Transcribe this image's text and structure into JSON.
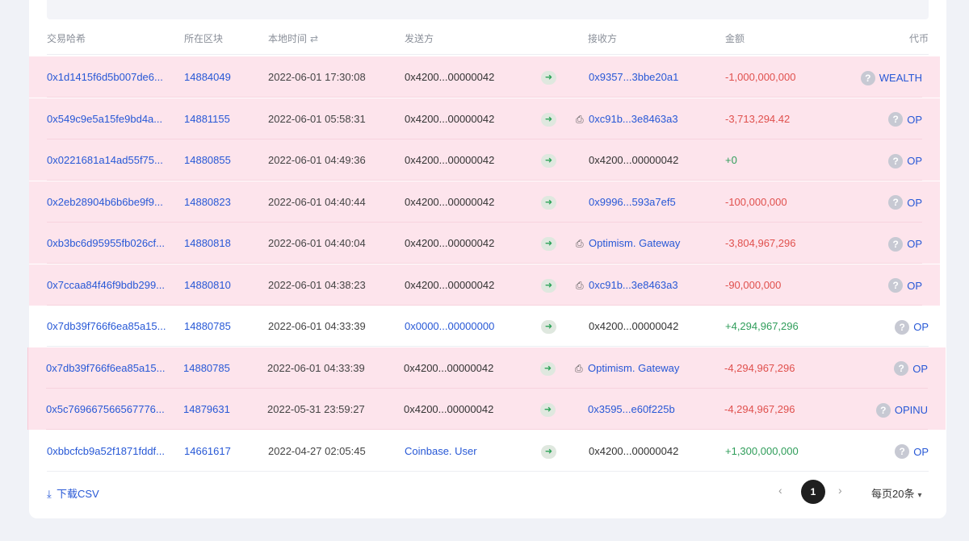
{
  "table": {
    "headers": {
      "hash": "交易哈希",
      "block": "所在区块",
      "time": "本地时间",
      "from": "发送方",
      "to": "接收方",
      "amount": "金额",
      "token": "代币"
    },
    "rows": [
      {
        "hash": "0x1d1415f6d5b007de6...",
        "block": "14884049",
        "time": "2022-06-01 17:30:08",
        "from": "0x4200...00000042",
        "from_link": false,
        "to": "0x9357...3bbe20a1",
        "to_link": true,
        "to_contract": false,
        "amount": "-1,000,000,000",
        "amount_sign": "neg",
        "token": "WEALTH",
        "highlight": true
      },
      {
        "hash": "0x549c9e5a15fe9bd4a...",
        "block": "14881155",
        "time": "2022-06-01 05:58:31",
        "from": "0x4200...00000042",
        "from_link": false,
        "to": "0xc91b...3e8463a3",
        "to_link": true,
        "to_contract": true,
        "amount": "-3,713,294.42",
        "amount_sign": "neg",
        "token": "OP",
        "highlight": true
      },
      {
        "hash": "0x0221681a14ad55f75...",
        "block": "14880855",
        "time": "2022-06-01 04:49:36",
        "from": "0x4200...00000042",
        "from_link": false,
        "to": "0x4200...00000042",
        "to_link": false,
        "to_contract": false,
        "amount": "+0",
        "amount_sign": "pos",
        "token": "OP",
        "highlight": true
      },
      {
        "hash": "0x2eb28904b6b6be9f9...",
        "block": "14880823",
        "time": "2022-06-01 04:40:44",
        "from": "0x4200...00000042",
        "from_link": false,
        "to": "0x9996...593a7ef5",
        "to_link": true,
        "to_contract": false,
        "amount": "-100,000,000",
        "amount_sign": "neg",
        "token": "OP",
        "highlight": true
      },
      {
        "hash": "0xb3bc6d95955fb026cf...",
        "block": "14880818",
        "time": "2022-06-01 04:40:04",
        "from": "0x4200...00000042",
        "from_link": false,
        "to": "Optimism. Gateway",
        "to_link": true,
        "to_contract": true,
        "amount": "-3,804,967,296",
        "amount_sign": "neg",
        "token": "OP",
        "highlight": true
      },
      {
        "hash": "0x7ccaa84f46f9bdb299...",
        "block": "14880810",
        "time": "2022-06-01 04:38:23",
        "from": "0x4200...00000042",
        "from_link": false,
        "to": "0xc91b...3e8463a3",
        "to_link": true,
        "to_contract": true,
        "amount": "-90,000,000",
        "amount_sign": "neg",
        "token": "OP",
        "highlight": true
      },
      {
        "hash": "0x7db39f766f6ea85a15...",
        "block": "14880785",
        "time": "2022-06-01 04:33:39",
        "from": "0x0000...00000000",
        "from_link": true,
        "to": "0x4200...00000042",
        "to_link": false,
        "to_contract": false,
        "amount": "+4,294,967,296",
        "amount_sign": "pos",
        "token": "OP",
        "highlight": false
      },
      {
        "hash": "0x7db39f766f6ea85a15...",
        "block": "14880785",
        "time": "2022-06-01 04:33:39",
        "from": "0x4200...00000042",
        "from_link": false,
        "to": "Optimism. Gateway",
        "to_link": true,
        "to_contract": true,
        "amount": "-4,294,967,296",
        "amount_sign": "neg",
        "token": "OP",
        "highlight": true
      },
      {
        "hash": "0x5c769667566567776...",
        "block": "14879631",
        "time": "2022-05-31 23:59:27",
        "from": "0x4200...00000042",
        "from_link": false,
        "to": "0x3595...e60f225b",
        "to_link": true,
        "to_contract": false,
        "amount": "-4,294,967,296",
        "amount_sign": "neg",
        "token": "OPINU",
        "highlight": true
      },
      {
        "hash": "0xbbcfcb9a52f1871fddf...",
        "block": "14661617",
        "time": "2022-04-27 02:05:45",
        "from": "Coinbase. User",
        "from_link": true,
        "to": "0x4200...00000042",
        "to_link": false,
        "to_contract": false,
        "amount": "+1,300,000,000",
        "amount_sign": "pos",
        "token": "OP",
        "highlight": false
      }
    ]
  },
  "footer": {
    "download_label": "下载CSV",
    "current_page": "1",
    "page_size_label": "每页20条"
  },
  "colors": {
    "highlight_row": "#fde4ec",
    "link": "#2758d6",
    "negative": "#e0504d",
    "positive": "#2f9d5a"
  }
}
